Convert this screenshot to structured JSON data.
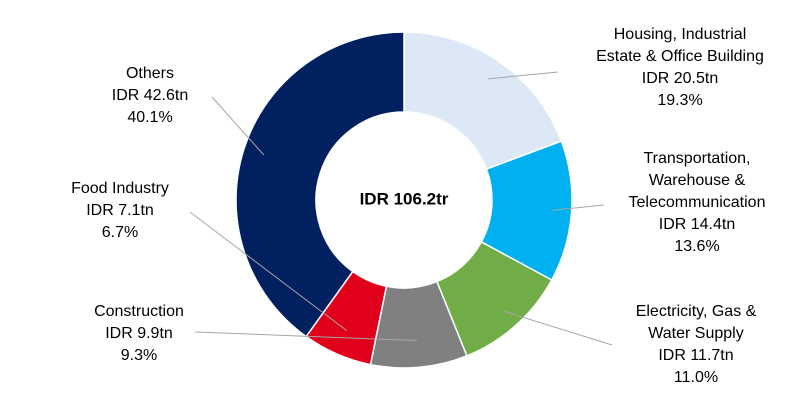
{
  "chart_data": {
    "type": "pie",
    "center_label": "IDR 106.2tr",
    "legend": "none",
    "slices": [
      {
        "label_lines": [
          "Housing, Industrial",
          "Estate & Office Building"
        ],
        "amount": "IDR 20.5tn",
        "percent_label": "19.3%",
        "value": 19.3,
        "color": "#dce8f5"
      },
      {
        "label_lines": [
          "Transportation,",
          "Warehouse &",
          "Telecommunication"
        ],
        "amount": "IDR 14.4tn",
        "percent_label": "13.6%",
        "value": 13.6,
        "color": "#00b0f0"
      },
      {
        "label_lines": [
          "Electricity, Gas &",
          "Water Supply"
        ],
        "amount": "IDR 11.7tn",
        "percent_label": "11.0%",
        "value": 11.0,
        "color": "#70ad47"
      },
      {
        "label_lines": [
          "Construction"
        ],
        "amount": "IDR 9.9tn",
        "percent_label": "9.3%",
        "value": 9.3,
        "color": "#808080"
      },
      {
        "label_lines": [
          "Food Industry"
        ],
        "amount": "IDR 7.1tn",
        "percent_label": "6.7%",
        "value": 6.7,
        "color": "#e0001b"
      },
      {
        "label_lines": [
          "Others"
        ],
        "amount": "IDR 42.6tn",
        "percent_label": "40.1%",
        "value": 40.1,
        "color": "#002060"
      }
    ]
  }
}
